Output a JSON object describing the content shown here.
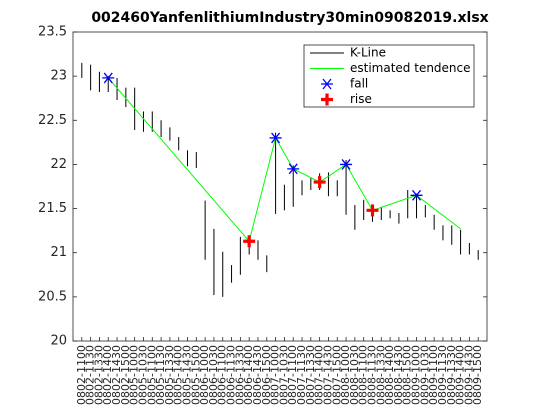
{
  "chart_data": {
    "type": "kline",
    "title": "002460YanfenlithiumIndustry30min09082019.xlsx",
    "categories": [
      "0802-1100",
      "0802-1130",
      "0802-1330",
      "0802-1400",
      "0802-1430",
      "0802-1500",
      "0805-1000",
      "0805-1030",
      "0805-1100",
      "0805-1130",
      "0805-1330",
      "0805-1400",
      "0805-1430",
      "0805-1500",
      "0806-1000",
      "0806-1030",
      "0806-1100",
      "0806-1130",
      "0806-1330",
      "0806-1400",
      "0806-1430",
      "0806-1500",
      "0807-1000",
      "0807-1030",
      "0807-1100",
      "0807-1130",
      "0807-1330",
      "0807-1400",
      "0807-1430",
      "0807-1500",
      "0808-1000",
      "0808-1030",
      "0808-1100",
      "0808-1130",
      "0808-1330",
      "0808-1400",
      "0808-1430",
      "0808-1500",
      "0809-1000",
      "0809-1030",
      "0809-1100",
      "0809-1130",
      "0809-1330",
      "0809-1400",
      "0809-1430",
      "0809-1500"
    ],
    "kline": {
      "name": "K-Line",
      "color": "#000000",
      "high": [
        23.15,
        23.13,
        23.05,
        23.0,
        22.98,
        22.87,
        22.87,
        22.6,
        22.6,
        22.5,
        22.42,
        22.31,
        22.16,
        22.14,
        21.59,
        21.27,
        21.01,
        20.86,
        21.18,
        21.19,
        21.14,
        20.97,
        22.36,
        21.77,
        21.99,
        21.82,
        21.85,
        21.9,
        21.91,
        21.82,
        22.05,
        21.54,
        21.6,
        21.54,
        21.52,
        21.48,
        21.45,
        21.71,
        21.67,
        21.54,
        21.43,
        21.31,
        21.31,
        21.26,
        21.11,
        21.03
      ],
      "low": [
        22.98,
        22.84,
        22.82,
        22.82,
        22.73,
        22.65,
        22.39,
        22.37,
        22.37,
        22.31,
        22.27,
        22.16,
        21.98,
        21.96,
        20.92,
        20.52,
        20.5,
        20.66,
        20.75,
        20.98,
        20.92,
        20.78,
        21.44,
        21.48,
        21.52,
        21.65,
        21.71,
        21.71,
        21.64,
        21.64,
        21.43,
        21.26,
        21.37,
        21.35,
        21.37,
        21.39,
        21.33,
        21.39,
        21.39,
        21.4,
        21.26,
        21.14,
        21.09,
        20.98,
        20.98,
        20.92
      ]
    },
    "series": [
      {
        "name": "estimated tendence",
        "color": "#00ff00",
        "marker": "line",
        "x": [
          "0802-1400",
          "0806-1400",
          "0807-1000",
          "0807-1100",
          "0807-1400",
          "0808-1000",
          "0808-1130",
          "0809-1000",
          "0809-1400"
        ],
        "values": [
          22.98,
          21.13,
          22.3,
          21.95,
          21.8,
          22.0,
          21.48,
          21.65,
          21.27
        ]
      },
      {
        "name": "fall",
        "color": "#0000ff",
        "marker": "asterisk",
        "x": [
          "0802-1400",
          "0807-1000",
          "0807-1100",
          "0808-1000",
          "0809-1000"
        ],
        "values": [
          22.98,
          22.3,
          21.95,
          22.0,
          21.65
        ]
      },
      {
        "name": "rise",
        "color": "#ff0000",
        "marker": "plus",
        "x": [
          "0806-1400",
          "0807-1400",
          "0808-1130"
        ],
        "values": [
          21.13,
          21.8,
          21.48
        ]
      }
    ],
    "ylim": [
      20,
      23.5
    ],
    "yticks": [
      20,
      20.5,
      21,
      21.5,
      22,
      22.5,
      23,
      23.5
    ],
    "legend": "top-right",
    "grid": false
  }
}
